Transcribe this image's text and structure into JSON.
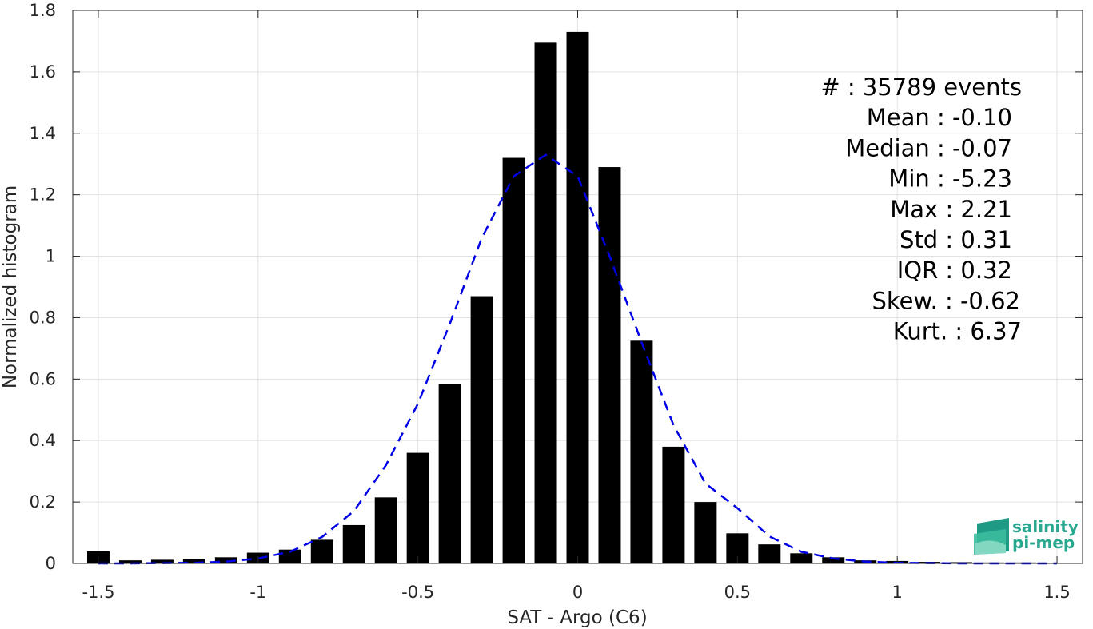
{
  "chart_data": {
    "type": "bar",
    "xlabel": "SAT - Argo (C6)",
    "ylabel": "Normalized histogram",
    "xlim": [
      -1.58,
      1.58
    ],
    "ylim": [
      0,
      1.8
    ],
    "xticks": [
      -1.5,
      -1,
      -0.5,
      0,
      0.5,
      1,
      1.5
    ],
    "xtick_labels": [
      "-1.5",
      "-1",
      "-0.5",
      "0",
      "0.5",
      "1",
      "1.5"
    ],
    "yticks": [
      0,
      0.2,
      0.4,
      0.6,
      0.8,
      1,
      1.2,
      1.4,
      1.6,
      1.8
    ],
    "ytick_labels": [
      "0",
      "0.2",
      "0.4",
      "0.6",
      "0.8",
      "1",
      "1.2",
      "1.4",
      "1.6",
      "1.8"
    ],
    "grid": true,
    "bar_width": 0.07,
    "bars": {
      "x": [
        -1.5,
        -1.4,
        -1.3,
        -1.2,
        -1.1,
        -1.0,
        -0.9,
        -0.8,
        -0.7,
        -0.6,
        -0.5,
        -0.4,
        -0.3,
        -0.2,
        -0.1,
        0.0,
        0.1,
        0.2,
        0.3,
        0.4,
        0.5,
        0.6,
        0.7,
        0.8,
        0.9,
        1.0,
        1.1,
        1.2,
        1.3,
        1.4,
        1.5
      ],
      "values": [
        0.04,
        0.01,
        0.012,
        0.015,
        0.02,
        0.035,
        0.045,
        0.077,
        0.125,
        0.215,
        0.36,
        0.585,
        0.87,
        1.32,
        1.695,
        1.73,
        1.29,
        0.725,
        0.38,
        0.2,
        0.098,
        0.062,
        0.033,
        0.02,
        0.01,
        0.008,
        0.005,
        0.004,
        0.003,
        0.003,
        0.002
      ],
      "color": "#000000"
    },
    "fit_curve": {
      "style": "dashed",
      "color": "#0000e6",
      "x": [
        -1.5,
        -1.4,
        -1.3,
        -1.2,
        -1.1,
        -1.0,
        -0.9,
        -0.8,
        -0.7,
        -0.6,
        -0.5,
        -0.4,
        -0.3,
        -0.2,
        -0.1,
        0.0,
        0.1,
        0.2,
        0.3,
        0.4,
        0.5,
        0.6,
        0.7,
        0.8,
        0.9,
        1.0,
        1.1,
        1.2,
        1.3,
        1.4,
        1.5
      ],
      "y": [
        0.0,
        0.0,
        0.001,
        0.002,
        0.006,
        0.016,
        0.038,
        0.086,
        0.171,
        0.32,
        0.52,
        0.78,
        1.06,
        1.26,
        1.33,
        1.26,
        1.0,
        0.72,
        0.45,
        0.26,
        0.18,
        0.088,
        0.038,
        0.016,
        0.006,
        0.002,
        0.001,
        0.0,
        0.0,
        0.0,
        0.0
      ]
    },
    "stats": [
      {
        "label": "#  : 35789 events"
      },
      {
        "label": "Mean : -0.10"
      },
      {
        "label": "Median : -0.07"
      },
      {
        "label": "Min : -5.23"
      },
      {
        "label": "Max : 2.21"
      },
      {
        "label": "Std : 0.31"
      },
      {
        "label": "IQR : 0.32"
      },
      {
        "label": "Skew. : -0.62"
      },
      {
        "label": "Kurt. : 6.37"
      }
    ]
  },
  "logo": {
    "line1": "salinity",
    "line2": "pi-mep",
    "color": "#27a88f"
  }
}
